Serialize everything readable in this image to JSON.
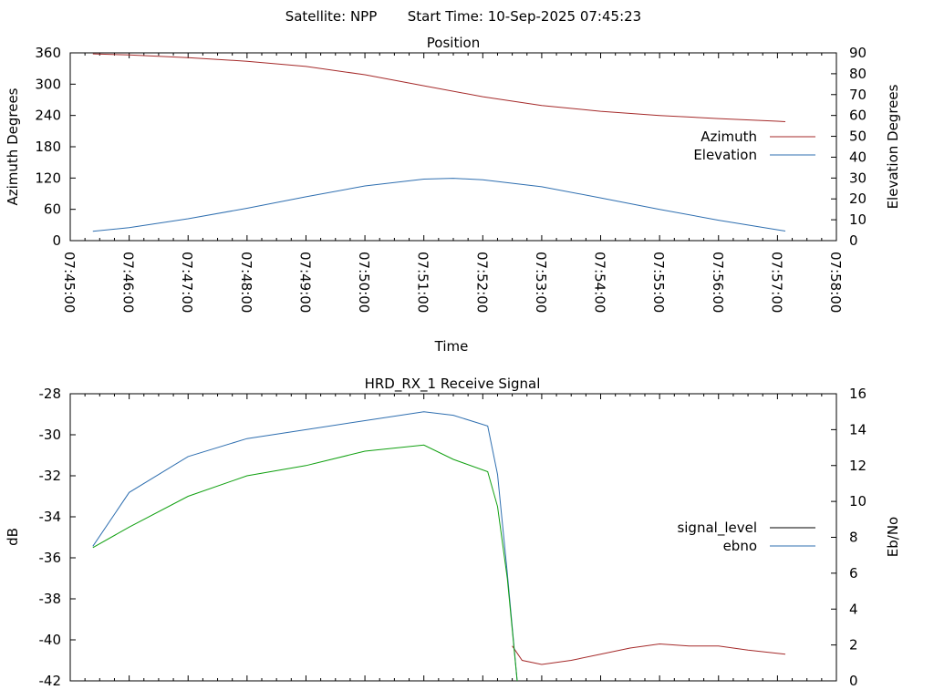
{
  "header": {
    "satellite": "Satellite: NPP",
    "start_time": "Start Time: 10-Sep-2025 07:45:23"
  },
  "chart_data": [
    {
      "type": "line",
      "title": "Position",
      "xlabel": "Time",
      "ylabel": "Azimuth Degrees",
      "y2label": "Elevation Degrees",
      "xlim": [
        "07:45:00",
        "07:58:00"
      ],
      "x_ticks": [
        "07:45:00",
        "07:46:00",
        "07:47:00",
        "07:48:00",
        "07:49:00",
        "07:50:00",
        "07:51:00",
        "07:52:00",
        "07:53:00",
        "07:54:00",
        "07:55:00",
        "07:56:00",
        "07:57:00",
        "07:58:00"
      ],
      "ylim": [
        0,
        360
      ],
      "y_ticks": [
        "0",
        "60",
        "120",
        "180",
        "240",
        "300",
        "360"
      ],
      "y2lim": [
        0,
        90
      ],
      "y2_ticks": [
        "0",
        "10",
        "20",
        "30",
        "40",
        "50",
        "60",
        "70",
        "80",
        "90"
      ],
      "legend_position": "right",
      "series": [
        {
          "name": "Azimuth",
          "axis": "left",
          "color": "#a52a2a",
          "points": [
            [
              "07:45:23",
              358
            ],
            [
              "07:46:00",
              356
            ],
            [
              "07:47:00",
              351
            ],
            [
              "07:48:00",
              344
            ],
            [
              "07:49:00",
              334
            ],
            [
              "07:50:00",
              318
            ],
            [
              "07:51:00",
              297
            ],
            [
              "07:52:00",
              276
            ],
            [
              "07:53:00",
              259
            ],
            [
              "07:54:00",
              248
            ],
            [
              "07:55:00",
              240
            ],
            [
              "07:56:00",
              234
            ],
            [
              "07:57:00",
              229
            ],
            [
              "07:57:08",
              228
            ]
          ]
        },
        {
          "name": "Elevation",
          "axis": "right",
          "color": "#2f6fb0",
          "points": [
            [
              "07:45:23",
              4.5
            ],
            [
              "07:46:00",
              6.2
            ],
            [
              "07:47:00",
              10.5
            ],
            [
              "07:48:00",
              15.5
            ],
            [
              "07:49:00",
              21.0
            ],
            [
              "07:50:00",
              26.2
            ],
            [
              "07:51:00",
              29.5
            ],
            [
              "07:51:30",
              29.9
            ],
            [
              "07:52:00",
              29.2
            ],
            [
              "07:53:00",
              25.8
            ],
            [
              "07:54:00",
              20.5
            ],
            [
              "07:55:00",
              15.0
            ],
            [
              "07:56:00",
              9.8
            ],
            [
              "07:57:00",
              5.2
            ],
            [
              "07:57:08",
              4.6
            ]
          ]
        }
      ]
    },
    {
      "type": "line",
      "title": "HRD_RX_1 Receive Signal",
      "ylabel": "dB",
      "y2label": "Eb/No",
      "xlim": [
        "07:45:00",
        "07:58:00"
      ],
      "ylim": [
        -42,
        -28
      ],
      "y_ticks": [
        "-42",
        "-40",
        "-38",
        "-36",
        "-34",
        "-32",
        "-30",
        "-28"
      ],
      "y2lim": [
        0,
        16
      ],
      "y2_ticks": [
        "0",
        "2",
        "4",
        "6",
        "8",
        "10",
        "12",
        "14",
        "16"
      ],
      "legend_position": "right",
      "series": [
        {
          "name": "signal_level",
          "axis": "left",
          "color": "#000000",
          "plotted_color": "#a52a2a",
          "points": [
            [
              "07:52:30",
              -40.3
            ],
            [
              "07:52:40",
              -41.0
            ],
            [
              "07:53:00",
              -41.2
            ],
            [
              "07:53:30",
              -41.0
            ],
            [
              "07:54:00",
              -40.7
            ],
            [
              "07:54:30",
              -40.4
            ],
            [
              "07:55:00",
              -40.2
            ],
            [
              "07:55:30",
              -40.3
            ],
            [
              "07:56:00",
              -40.3
            ],
            [
              "07:56:30",
              -40.5
            ],
            [
              "07:57:08",
              -40.7
            ]
          ]
        },
        {
          "name": "ebno",
          "axis": "right",
          "color": "#2f6fb0",
          "points": [
            [
              "07:45:23",
              7.5
            ],
            [
              "07:46:00",
              10.5
            ],
            [
              "07:47:00",
              12.5
            ],
            [
              "07:48:00",
              13.5
            ],
            [
              "07:49:00",
              14.0
            ],
            [
              "07:50:00",
              14.5
            ],
            [
              "07:51:00",
              15.0
            ],
            [
              "07:51:30",
              14.8
            ],
            [
              "07:52:05",
              14.2
            ],
            [
              "07:52:15",
              11.5
            ],
            [
              "07:52:25",
              6.0
            ],
            [
              "07:52:35",
              0
            ]
          ]
        },
        {
          "name": "",
          "axis": "left",
          "color": "#10a010",
          "points": [
            [
              "07:45:23",
              -35.5
            ],
            [
              "07:46:00",
              -34.5
            ],
            [
              "07:47:00",
              -33.0
            ],
            [
              "07:48:00",
              -32.0
            ],
            [
              "07:49:00",
              -31.5
            ],
            [
              "07:50:00",
              -30.8
            ],
            [
              "07:51:00",
              -30.5
            ],
            [
              "07:51:30",
              -31.2
            ],
            [
              "07:52:05",
              -31.8
            ],
            [
              "07:52:15",
              -33.5
            ],
            [
              "07:52:25",
              -37.0
            ],
            [
              "07:52:35",
              -42.0
            ]
          ]
        }
      ]
    }
  ]
}
